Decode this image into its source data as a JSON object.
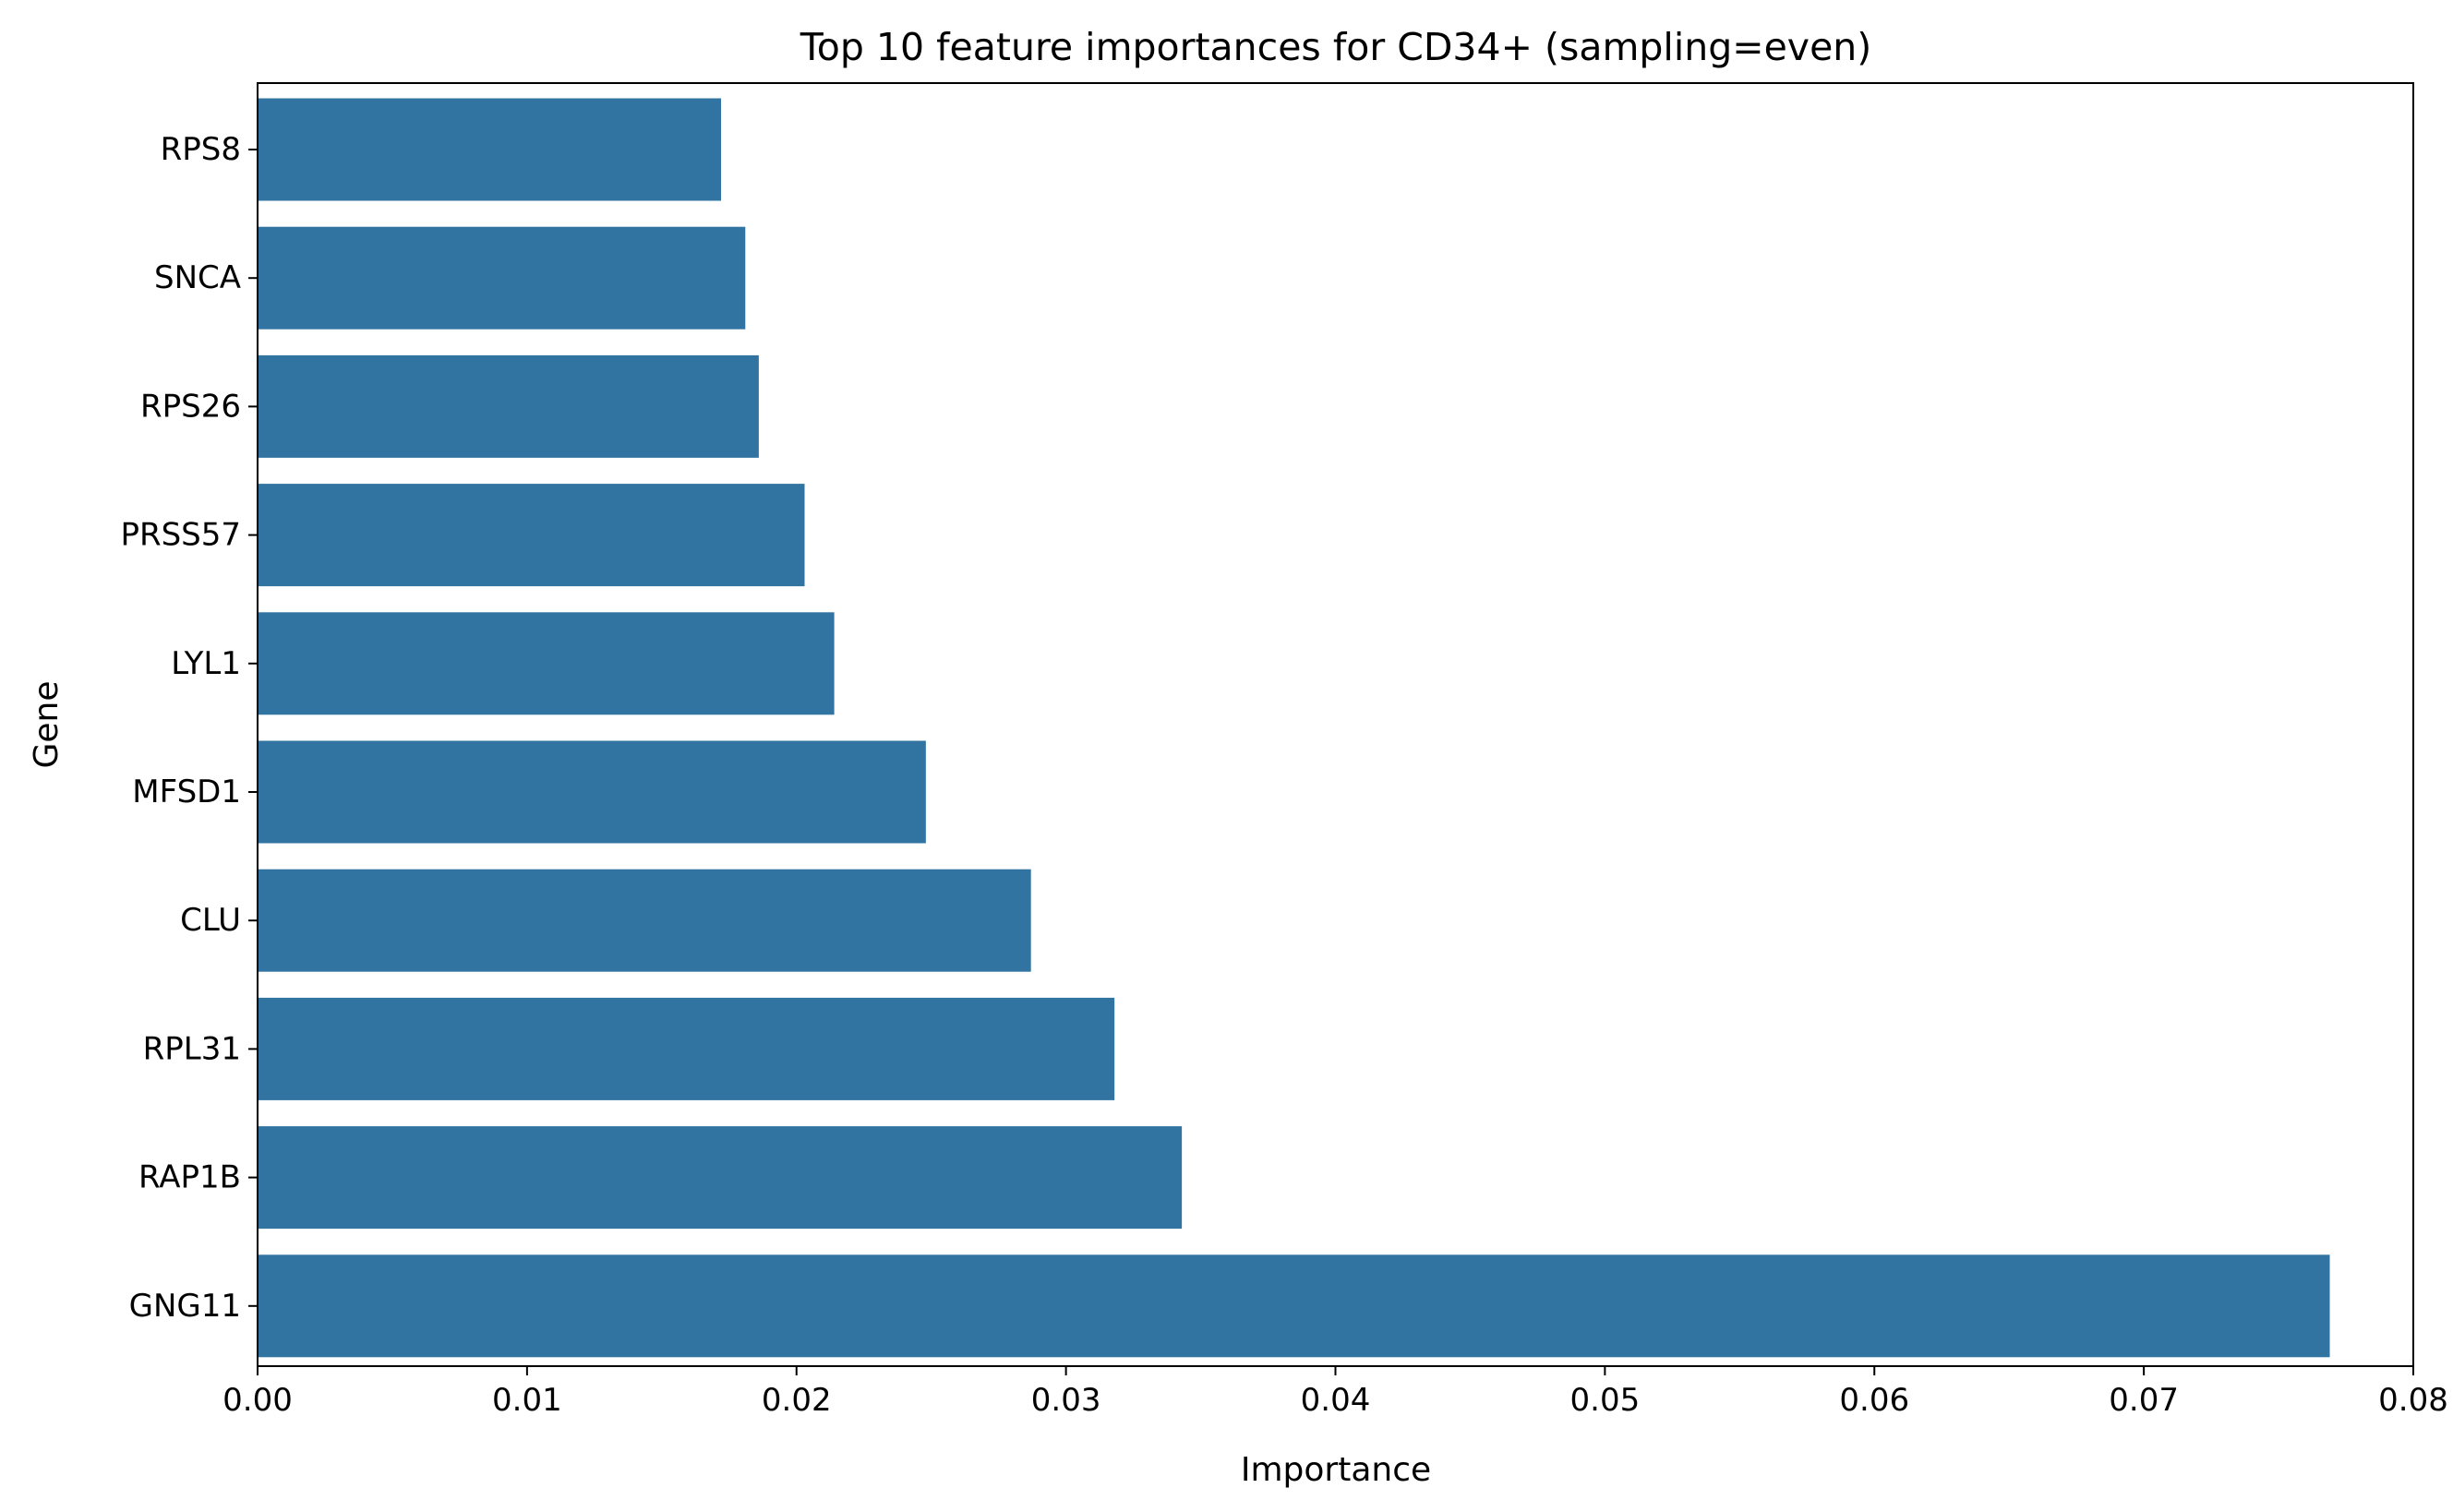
{
  "chart_data": {
    "type": "bar",
    "orientation": "horizontal",
    "title": "Top 10 feature importances for CD34+ (sampling=even)",
    "xlabel": "Importance",
    "ylabel": "Gene",
    "categories": [
      "RPS8",
      "SNCA",
      "RPS26",
      "PRSS57",
      "LYL1",
      "MFSD1",
      "CLU",
      "RPL31",
      "RAP1B",
      "GNG11"
    ],
    "values": [
      0.0172,
      0.0181,
      0.0186,
      0.0203,
      0.0214,
      0.0248,
      0.0287,
      0.0318,
      0.0343,
      0.0769
    ],
    "xlim": [
      0,
      0.08
    ],
    "xticks": [
      "0.00",
      "0.01",
      "0.02",
      "0.03",
      "0.04",
      "0.05",
      "0.06",
      "0.07",
      "0.08"
    ],
    "bar_color": "#3274a1",
    "grid": false,
    "legend": "none"
  }
}
